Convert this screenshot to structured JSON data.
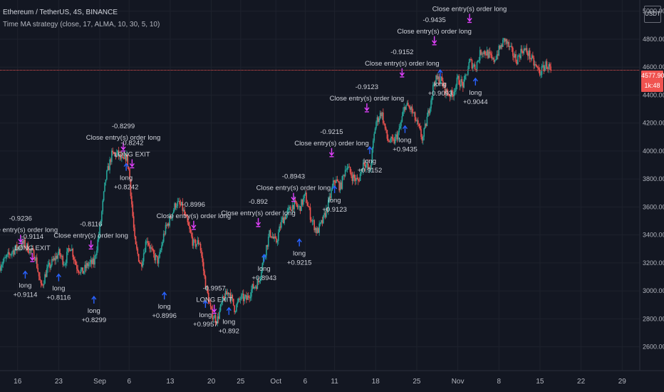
{
  "header": {
    "title": "Ethereum / TetherUS, 4S, BINANCE",
    "strategy": "Time MA strategy (close, 17, ALMA, 10, 30, 5, 10)"
  },
  "price_axis": {
    "currency": "USDT"
  },
  "last_price": {
    "value": "4577.90",
    "countdown": "1k:48"
  },
  "colors": {
    "background": "#131722",
    "up": "#26a69a",
    "down": "#ef5350",
    "entry": "#2962ff",
    "exit": "#e040fb",
    "price_line": "#f05350"
  },
  "chart_data": {
    "type": "candlestick",
    "y_ticks": [
      2600,
      2800,
      3000,
      3200,
      3400,
      3600,
      3800,
      4000,
      4200,
      4400,
      4600,
      4800,
      5000
    ],
    "y_tick_labels": [
      "2600.00",
      "2800.00",
      "3000.00",
      "3200.00",
      "3400.00",
      "3600.00",
      "3800.00",
      "4000.00",
      "4200.00",
      "4400.00",
      "4600.00",
      "4800.00",
      "5000.00"
    ],
    "ylim": [
      2430,
      5080
    ],
    "x_labels": [
      {
        "label": "16",
        "pos": 1
      },
      {
        "label": "23",
        "pos": 8
      },
      {
        "label": "Sep",
        "pos": 15
      },
      {
        "label": "6",
        "pos": 20
      },
      {
        "label": "13",
        "pos": 27
      },
      {
        "label": "20",
        "pos": 34
      },
      {
        "label": "25",
        "pos": 39
      },
      {
        "label": "Oct",
        "pos": 45
      },
      {
        "label": "6",
        "pos": 50
      },
      {
        "label": "11",
        "pos": 55
      },
      {
        "label": "18",
        "pos": 62
      },
      {
        "label": "25",
        "pos": 69
      },
      {
        "label": "Nov",
        "pos": 76
      },
      {
        "label": "8",
        "pos": 83
      },
      {
        "label": "15",
        "pos": 90
      },
      {
        "label": "22",
        "pos": 97
      },
      {
        "label": "29",
        "pos": 104
      }
    ],
    "x_range": [
      -2,
      107
    ],
    "last_day": 92,
    "close_path": [
      [
        -2,
        3180
      ],
      [
        0,
        3280
      ],
      [
        2,
        3340
      ],
      [
        4,
        3250
      ],
      [
        5,
        3020
      ],
      [
        6,
        3150
      ],
      [
        8,
        3270
      ],
      [
        9,
        3200
      ],
      [
        10,
        3330
      ],
      [
        11,
        3180
      ],
      [
        12,
        3130
      ],
      [
        13,
        3190
      ],
      [
        14,
        3200
      ],
      [
        15,
        3440
      ],
      [
        16,
        3800
      ],
      [
        17,
        3970
      ],
      [
        18,
        3980
      ],
      [
        19,
        3920
      ],
      [
        19.5,
        3970
      ],
      [
        20,
        3850
      ],
      [
        21,
        3330
      ],
      [
        22,
        3180
      ],
      [
        23,
        3380
      ],
      [
        24,
        3260
      ],
      [
        25,
        3210
      ],
      [
        26,
        3420
      ],
      [
        27,
        3520
      ],
      [
        28,
        3630
      ],
      [
        29,
        3600
      ],
      [
        30,
        3470
      ],
      [
        31,
        3330
      ],
      [
        32,
        3350
      ],
      [
        33,
        3050
      ],
      [
        34,
        2840
      ],
      [
        35,
        2790
      ],
      [
        36,
        2940
      ],
      [
        37,
        3000
      ],
      [
        38,
        2870
      ],
      [
        39,
        2950
      ],
      [
        40,
        2940
      ],
      [
        41,
        3020
      ],
      [
        42,
        3060
      ],
      [
        43,
        3250
      ],
      [
        44,
        3420
      ],
      [
        45,
        3340
      ],
      [
        46,
        3500
      ],
      [
        47,
        3560
      ],
      [
        48,
        3620
      ],
      [
        49,
        3590
      ],
      [
        50,
        3680
      ],
      [
        51,
        3520
      ],
      [
        52,
        3420
      ],
      [
        53,
        3500
      ],
      [
        54,
        3630
      ],
      [
        55,
        3800
      ],
      [
        56,
        3740
      ],
      [
        57,
        3900
      ],
      [
        58,
        3820
      ],
      [
        59,
        3780
      ],
      [
        60,
        3930
      ],
      [
        61,
        3850
      ],
      [
        62,
        4200
      ],
      [
        63,
        4280
      ],
      [
        64,
        4080
      ],
      [
        65,
        4060
      ],
      [
        66,
        4140
      ],
      [
        67,
        4330
      ],
      [
        68,
        4300
      ],
      [
        69,
        4200
      ],
      [
        70,
        4080
      ],
      [
        71,
        4280
      ],
      [
        72,
        4500
      ],
      [
        73,
        4520
      ],
      [
        74,
        4420
      ],
      [
        75,
        4400
      ],
      [
        76,
        4510
      ],
      [
        77,
        4470
      ],
      [
        78,
        4640
      ],
      [
        79,
        4600
      ],
      [
        80,
        4720
      ],
      [
        81,
        4700
      ],
      [
        82,
        4640
      ],
      [
        83,
        4720
      ],
      [
        84,
        4800
      ],
      [
        85,
        4720
      ],
      [
        86,
        4650
      ],
      [
        87,
        4730
      ],
      [
        88,
        4700
      ],
      [
        89,
        4620
      ],
      [
        90,
        4560
      ],
      [
        91,
        4620
      ],
      [
        92,
        4578
      ]
    ],
    "last_price": 4577.9,
    "trades": [
      {
        "day": 1.5,
        "type": "exit",
        "price": 3340,
        "above": [
          "-0.9236",
          "Close entry(s) order long"
        ]
      },
      {
        "day": 3.5,
        "type": "exit",
        "price": 3210,
        "above": [
          "-0.9114",
          "LONG EXIT"
        ]
      },
      {
        "day": 2.3,
        "type": "entry",
        "price": 3150,
        "below": [
          "long",
          "+0.9114"
        ]
      },
      {
        "day": 8,
        "type": "entry",
        "price": 3130,
        "below": [
          "long",
          "+0.8116"
        ]
      },
      {
        "day": 13.5,
        "type": "exit",
        "price": 3300,
        "above": [
          "-0.8116",
          "Close entry(s) order long"
        ]
      },
      {
        "day": 14,
        "type": "entry",
        "price": 2970,
        "below": [
          "long",
          "+0.8299"
        ]
      },
      {
        "day": 19,
        "type": "exit",
        "price": 4000,
        "above": [
          "-0.8299",
          "Close entry(s) order long"
        ]
      },
      {
        "day": 20.5,
        "type": "exit",
        "price": 3880,
        "above": [
          "-0.8242",
          "LONG EXIT"
        ]
      },
      {
        "day": 19.5,
        "type": "entry",
        "price": 3920,
        "below": [
          "long",
          "+0.8242"
        ]
      },
      {
        "day": 26,
        "type": "entry",
        "price": 3000,
        "below": [
          "long",
          "+0.8996"
        ]
      },
      {
        "day": 31,
        "type": "exit",
        "price": 3440,
        "above": [
          "-0.8996",
          "Close entry(s) order long"
        ]
      },
      {
        "day": 33,
        "type": "entry",
        "price": 2940,
        "below": [
          "long",
          "+0.9957"
        ]
      },
      {
        "day": 34.5,
        "type": "exit",
        "price": 2840,
        "above": [
          "-0.9957",
          "LONG EXIT"
        ]
      },
      {
        "day": 37,
        "type": "entry",
        "price": 2890,
        "below": [
          "long",
          "+0.892"
        ]
      },
      {
        "day": 42,
        "type": "exit",
        "price": 3460,
        "above": [
          "-0.892",
          "Close entry(s) order long"
        ]
      },
      {
        "day": 43,
        "type": "entry",
        "price": 3270,
        "below": [
          "long",
          "+0.8943"
        ]
      },
      {
        "day": 48,
        "type": "exit",
        "price": 3640,
        "above": [
          "-0.8943",
          "Close entry(s) order long"
        ]
      },
      {
        "day": 49,
        "type": "entry",
        "price": 3380,
        "below": [
          "long",
          "+0.9215"
        ]
      },
      {
        "day": 54.5,
        "type": "exit",
        "price": 3960,
        "above": [
          "-0.9215",
          "Close entry(s) order long"
        ]
      },
      {
        "day": 55,
        "type": "entry",
        "price": 3760,
        "below": [
          "long",
          "+0.9123"
        ]
      },
      {
        "day": 60.5,
        "type": "exit",
        "price": 4280,
        "above": [
          "-0.9123",
          "Close entry(s) order long"
        ]
      },
      {
        "day": 61,
        "type": "entry",
        "price": 4040,
        "below": [
          "long",
          "+0.9152"
        ]
      },
      {
        "day": 66.5,
        "type": "exit",
        "price": 4530,
        "above": [
          "-0.9152",
          "Close entry(s) order long"
        ]
      },
      {
        "day": 67,
        "type": "entry",
        "price": 4190,
        "below": [
          "long",
          "+0.9435"
        ]
      },
      {
        "day": 72,
        "type": "exit",
        "price": 4760,
        "above": [
          "-0.9435",
          "Close entry(s) order long"
        ]
      },
      {
        "day": 73,
        "type": "entry",
        "price": 4590,
        "below": [
          "long",
          "+0.9093"
        ]
      },
      {
        "day": 78,
        "type": "exit",
        "price": 4920,
        "above": [
          "-0.9093",
          "Close entry(s) order long"
        ]
      },
      {
        "day": 79,
        "type": "entry",
        "price": 4530,
        "below": [
          "long",
          "+0.9044"
        ]
      }
    ]
  }
}
